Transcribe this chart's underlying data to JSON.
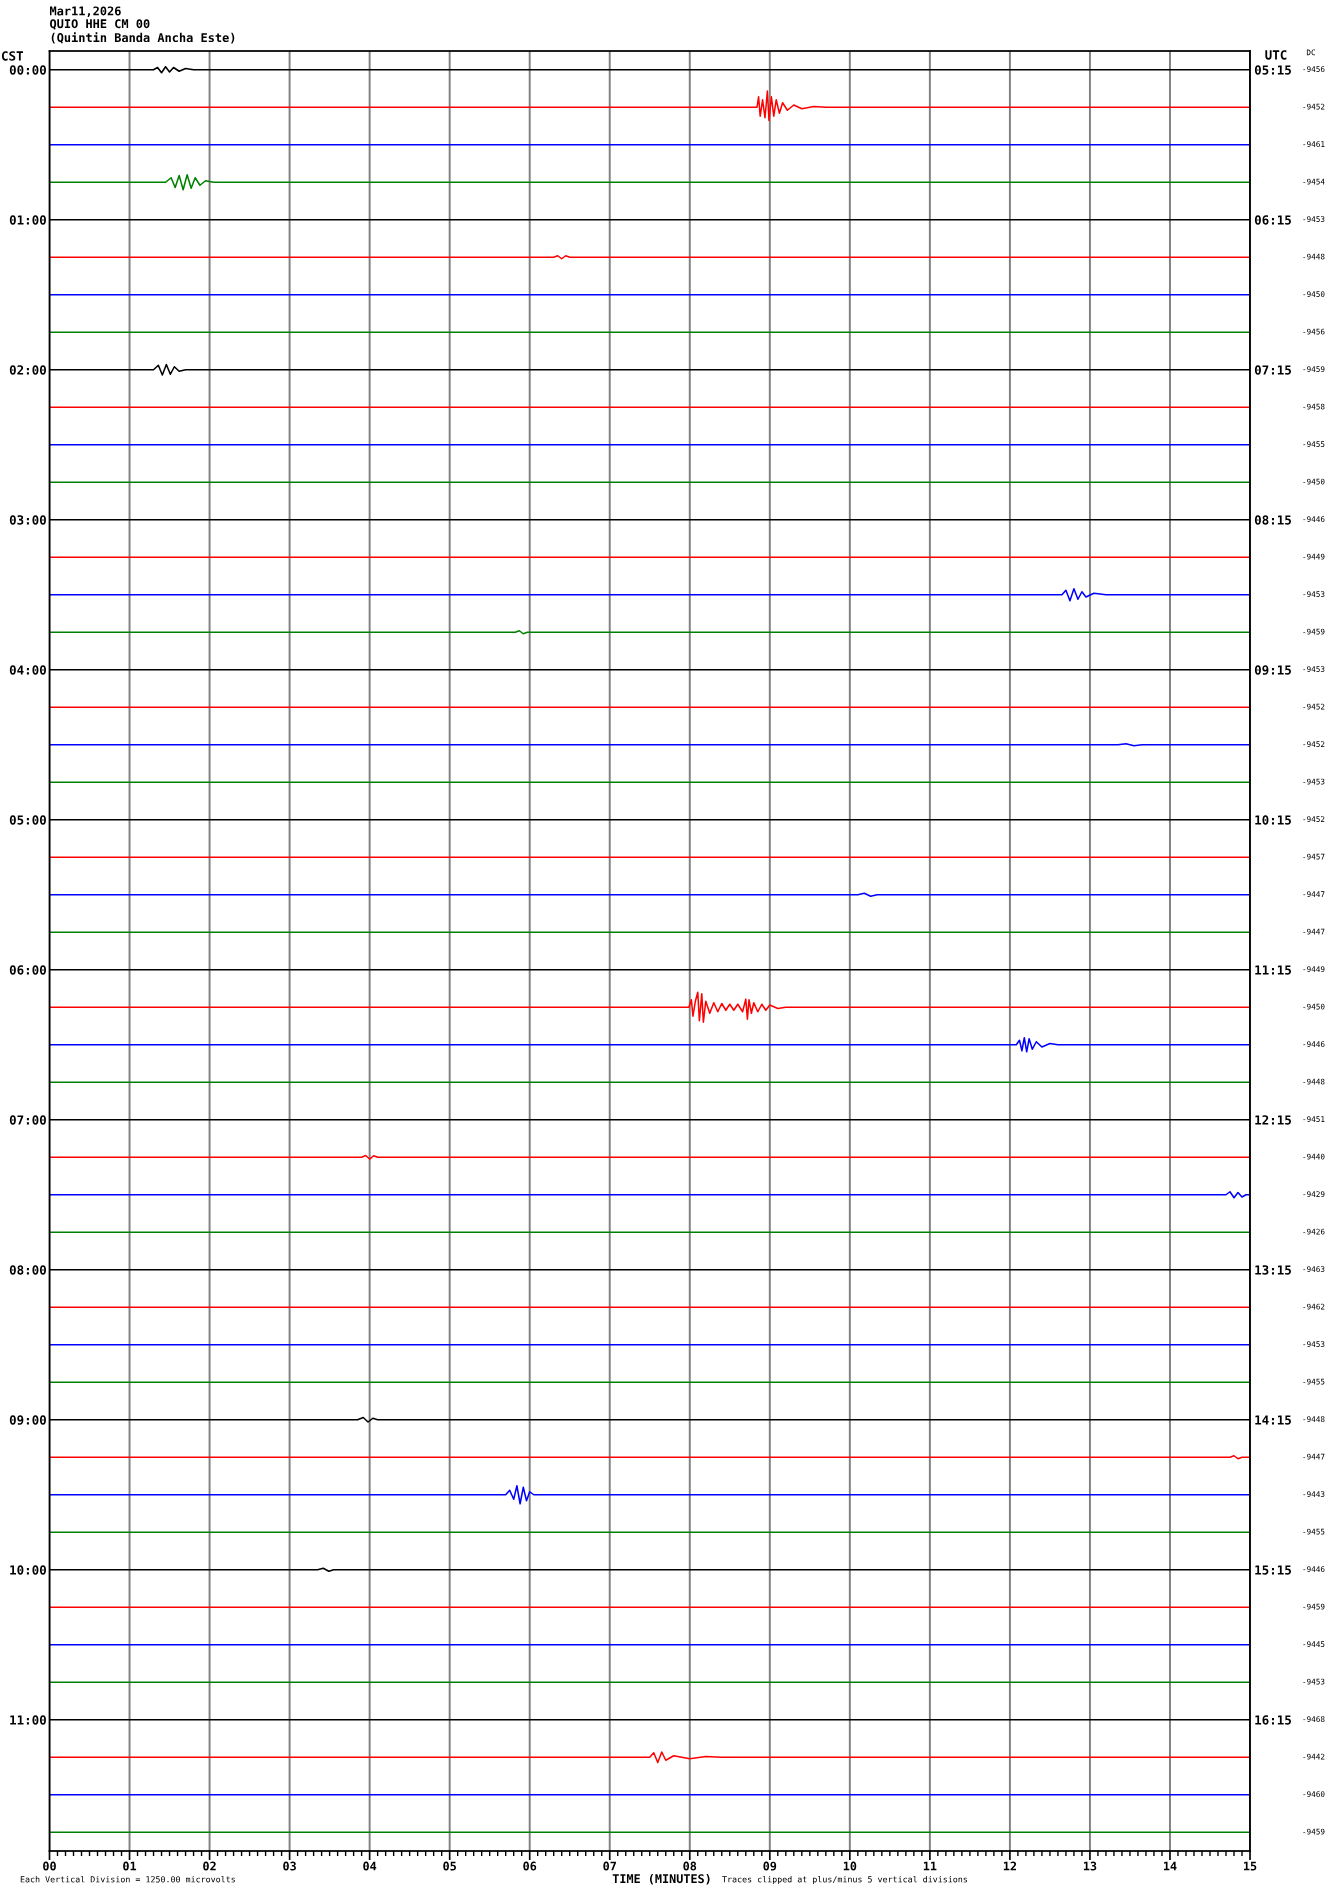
{
  "chart_data": {
    "type": "line",
    "title": "Mar11,2026",
    "subtitle": "QUIO HHE CM 00\n(Quintin Banda Ancha Este)",
    "xlabel": "TIME (MINUTES)",
    "ylabel": "CST",
    "y2label": "UTC",
    "annotations": [
      "Each Vertical Division = 1250.00 microvolts",
      "Traces clipped at plus/minus 5 vertical divisions",
      "DC",
      "-9456",
      "-9452",
      "-9461",
      "-9454",
      "-9453",
      "-9448",
      "-9450",
      "-9456",
      "-9459",
      "-9458",
      "-9455",
      "-9450",
      "-9446",
      "-9449",
      "-9453",
      "-9459",
      "-9453",
      "-9452",
      "-9452",
      "-9453",
      "-9452",
      "-9457",
      "-9447",
      "-9447",
      "-9449",
      "-9450",
      "-9446",
      "-9448",
      "-9451",
      "-9440",
      "-9429",
      "-9426",
      "-9463",
      "-9462",
      "-9453",
      "-9455",
      "-9448",
      "-9447",
      "-9443",
      "-9455",
      "-9446",
      "-9459",
      "-9445",
      "-9453",
      "-9468",
      "-9442",
      "-9460",
      "-9459"
    ],
    "grid": "x",
    "line_style": "solid",
    "xlim": [
      0,
      15
    ],
    "xticks": [
      {
        "value": 0,
        "label": "00"
      },
      {
        "value": 0.1,
        "label": null
      },
      {
        "value": 0.2,
        "label": null
      },
      {
        "value": 0.3,
        "label": null
      },
      {
        "value": 0.4,
        "label": null
      },
      {
        "value": 0.5,
        "label": null
      },
      {
        "value": 0.6,
        "label": null
      },
      {
        "value": 0.7,
        "label": null
      },
      {
        "value": 0.8,
        "label": null
      },
      {
        "value": 0.9,
        "label": null
      },
      {
        "value": 1,
        "label": "01"
      },
      {
        "value": 1.1,
        "label": null
      },
      {
        "value": 1.2,
        "label": null
      },
      {
        "value": 1.3,
        "label": null
      },
      {
        "value": 1.4,
        "label": null
      },
      {
        "value": 1.5,
        "label": null
      },
      {
        "value": 1.6,
        "label": null
      },
      {
        "value": 1.7,
        "label": null
      },
      {
        "value": 1.8,
        "label": null
      },
      {
        "value": 1.9,
        "label": null
      },
      {
        "value": 2,
        "label": "02"
      },
      {
        "value": 2.1,
        "label": null
      },
      {
        "value": 2.2,
        "label": null
      },
      {
        "value": 2.3,
        "label": null
      },
      {
        "value": 2.4,
        "label": null
      },
      {
        "value": 2.5,
        "label": null
      },
      {
        "value": 2.6,
        "label": null
      },
      {
        "value": 2.7,
        "label": null
      },
      {
        "value": 2.8,
        "label": null
      },
      {
        "value": 2.9,
        "label": null
      },
      {
        "value": 3,
        "label": "03"
      },
      {
        "value": 3.1,
        "label": null
      },
      {
        "value": 3.2,
        "label": null
      },
      {
        "value": 3.3,
        "label": null
      },
      {
        "value": 3.4,
        "label": null
      },
      {
        "value": 3.5,
        "label": null
      },
      {
        "value": 3.6,
        "label": null
      },
      {
        "value": 3.7,
        "label": null
      },
      {
        "value": 3.8,
        "label": null
      },
      {
        "value": 3.9,
        "label": null
      },
      {
        "value": 4,
        "label": "04"
      },
      {
        "value": 4.1,
        "label": null
      },
      {
        "value": 4.2,
        "label": null
      },
      {
        "value": 4.3,
        "label": null
      },
      {
        "value": 4.4,
        "label": null
      },
      {
        "value": 4.5,
        "label": null
      },
      {
        "value": 4.6,
        "label": null
      },
      {
        "value": 4.7,
        "label": null
      },
      {
        "value": 4.8,
        "label": null
      },
      {
        "value": 4.9,
        "label": null
      },
      {
        "value": 5,
        "label": "05"
      },
      {
        "value": 5.1,
        "label": null
      },
      {
        "value": 5.2,
        "label": null
      },
      {
        "value": 5.3,
        "label": null
      },
      {
        "value": 5.4,
        "label": null
      },
      {
        "value": 5.5,
        "label": null
      },
      {
        "value": 5.6,
        "label": null
      },
      {
        "value": 5.7,
        "label": null
      },
      {
        "value": 5.8,
        "label": null
      },
      {
        "value": 5.9,
        "label": null
      },
      {
        "value": 6,
        "label": "06"
      },
      {
        "value": 6.1,
        "label": null
      },
      {
        "value": 6.2,
        "label": null
      },
      {
        "value": 6.3,
        "label": null
      },
      {
        "value": 6.4,
        "label": null
      },
      {
        "value": 6.5,
        "label": null
      },
      {
        "value": 6.6,
        "label": null
      },
      {
        "value": 6.7,
        "label": null
      },
      {
        "value": 6.8,
        "label": null
      },
      {
        "value": 6.9,
        "label": null
      },
      {
        "value": 7,
        "label": "07"
      },
      {
        "value": 7.1,
        "label": null
      },
      {
        "value": 7.2,
        "label": null
      },
      {
        "value": 7.3,
        "label": null
      },
      {
        "value": 7.4,
        "label": null
      },
      {
        "value": 7.5,
        "label": null
      },
      {
        "value": 7.6,
        "label": null
      },
      {
        "value": 7.7,
        "label": null
      },
      {
        "value": 7.8,
        "label": null
      },
      {
        "value": 7.9,
        "label": null
      },
      {
        "value": 8,
        "label": "08"
      },
      {
        "value": 8.1,
        "label": null
      },
      {
        "value": 8.2,
        "label": null
      },
      {
        "value": 8.3,
        "label": null
      },
      {
        "value": 8.4,
        "label": null
      },
      {
        "value": 8.5,
        "label": null
      },
      {
        "value": 8.6,
        "label": null
      },
      {
        "value": 8.7,
        "label": null
      },
      {
        "value": 8.8,
        "label": null
      },
      {
        "value": 8.9,
        "label": null
      },
      {
        "value": 9,
        "label": "09"
      },
      {
        "value": 9.1,
        "label": null
      },
      {
        "value": 9.2,
        "label": null
      },
      {
        "value": 9.3,
        "label": null
      },
      {
        "value": 9.4,
        "label": null
      },
      {
        "value": 9.5,
        "label": null
      },
      {
        "value": 9.6,
        "label": null
      },
      {
        "value": 9.7,
        "label": null
      },
      {
        "value": 9.8,
        "label": null
      },
      {
        "value": 9.9,
        "label": null
      },
      {
        "value": 10,
        "label": "10"
      },
      {
        "value": 10.1,
        "label": null
      },
      {
        "value": 10.2,
        "label": null
      },
      {
        "value": 10.3,
        "label": null
      },
      {
        "value": 10.4,
        "label": null
      },
      {
        "value": 10.5,
        "label": null
      },
      {
        "value": 10.6,
        "label": null
      },
      {
        "value": 10.7,
        "label": null
      },
      {
        "value": 10.8,
        "label": null
      },
      {
        "value": 10.9,
        "label": null
      },
      {
        "value": 11,
        "label": "11"
      },
      {
        "value": 11.1,
        "label": null
      },
      {
        "value": 11.2,
        "label": null
      },
      {
        "value": 11.3,
        "label": null
      },
      {
        "value": 11.4,
        "label": null
      },
      {
        "value": 11.5,
        "label": null
      },
      {
        "value": 11.6,
        "label": null
      },
      {
        "value": 11.7,
        "label": null
      },
      {
        "value": 11.8,
        "label": null
      },
      {
        "value": 11.9,
        "label": null
      },
      {
        "value": 12,
        "label": "12"
      },
      {
        "value": 12.1,
        "label": null
      },
      {
        "value": 12.2,
        "label": null
      },
      {
        "value": 12.3,
        "label": null
      },
      {
        "value": 12.4,
        "label": null
      },
      {
        "value": 12.5,
        "label": null
      },
      {
        "value": 12.6,
        "label": null
      },
      {
        "value": 12.7,
        "label": null
      },
      {
        "value": 12.8,
        "label": null
      },
      {
        "value": 12.9,
        "label": null
      },
      {
        "value": 13,
        "label": "13"
      },
      {
        "value": 13.1,
        "label": null
      },
      {
        "value": 13.2,
        "label": null
      },
      {
        "value": 13.3,
        "label": null
      },
      {
        "value": 13.4,
        "label": null
      },
      {
        "value": 13.5,
        "label": null
      },
      {
        "value": 13.6,
        "label": null
      },
      {
        "value": 13.7,
        "label": null
      },
      {
        "value": 13.8,
        "label": null
      },
      {
        "value": 13.9,
        "label": null
      },
      {
        "value": 14,
        "label": "14"
      },
      {
        "value": 14.1,
        "label": null
      },
      {
        "value": 14.2,
        "label": null
      },
      {
        "value": 14.3,
        "label": null
      },
      {
        "value": 14.4,
        "label": null
      },
      {
        "value": 14.5,
        "label": null
      },
      {
        "value": 14.6,
        "label": null
      },
      {
        "value": 14.7,
        "label": null
      },
      {
        "value": 14.8,
        "label": null
      },
      {
        "value": 14.9,
        "label": null
      },
      {
        "value": 15,
        "label": "15"
      }
    ],
    "ylim": [
      11.875,
      -0.125
    ],
    "yticks": [
      {
        "value": 0,
        "label": "00:00"
      },
      {
        "value": 1,
        "label": "01:00"
      },
      {
        "value": 2,
        "label": "02:00"
      },
      {
        "value": 3,
        "label": "03:00"
      },
      {
        "value": 4,
        "label": "04:00"
      },
      {
        "value": 5,
        "label": "05:00"
      },
      {
        "value": 6,
        "label": "06:00"
      },
      {
        "value": 7,
        "label": "07:00"
      },
      {
        "value": 8,
        "label": "08:00"
      },
      {
        "value": 9,
        "label": "09:00"
      },
      {
        "value": 10,
        "label": "10:00"
      },
      {
        "value": 11,
        "label": "11:00"
      }
    ],
    "y2lim": [
      17.125,
      5.125
    ],
    "y2ticks": [
      {
        "value": 5.25,
        "label": "05:15"
      },
      {
        "value": 6.25,
        "label": "06:15"
      },
      {
        "value": 7.25,
        "label": "07:15"
      },
      {
        "value": 8.25,
        "label": "08:15"
      },
      {
        "value": 9.25,
        "label": "09:15"
      },
      {
        "value": 10.25,
        "label": "10:15"
      },
      {
        "value": 11.25,
        "label": "11:15"
      },
      {
        "value": 12.25,
        "label": "12:15"
      },
      {
        "value": 13.25,
        "label": "13:15"
      },
      {
        "value": 14.25,
        "label": "14:15"
      },
      {
        "value": 15.25,
        "label": "15:15"
      },
      {
        "value": 16.25,
        "label": "16:15"
      }
    ],
    "series": [
      {
        "color": "#000000",
        "x": [
          0,
          1.3,
          1.35,
          1.4,
          1.45,
          1.5,
          1.55,
          1.62,
          1.7,
          1.8,
          15
        ],
        "values": [
          0,
          0,
          -0.015,
          0.02,
          -0.02,
          0.015,
          -0.015,
          0.01,
          -0.008,
          0,
          0
        ]
      },
      {
        "color": "#ff0000",
        "x": [
          0,
          8.84,
          8.86,
          8.88,
          8.91,
          8.94,
          8.97,
          8.99,
          9.02,
          9.05,
          9.08,
          9.12,
          9.16,
          9.22,
          9.3,
          9.4,
          9.55,
          9.7,
          15
        ],
        "values": [
          0.25,
          0.25,
          0.18,
          0.31,
          0.2,
          0.32,
          0.142,
          0.338,
          0.18,
          0.31,
          0.2,
          0.29,
          0.22,
          0.27,
          0.235,
          0.26,
          0.245,
          0.25,
          0.25
        ]
      },
      {
        "color": "#0000ff",
        "x": [
          0,
          15
        ],
        "values": [
          0.5,
          0.5
        ]
      },
      {
        "color": "#008000",
        "x": [
          0,
          1.45,
          1.52,
          1.57,
          1.62,
          1.67,
          1.72,
          1.77,
          1.82,
          1.88,
          1.95,
          2.05,
          15
        ],
        "values": [
          0.75,
          0.75,
          0.72,
          0.785,
          0.705,
          0.8,
          0.7,
          0.79,
          0.72,
          0.77,
          0.74,
          0.75,
          0.75
        ]
      },
      {
        "color": "#000000",
        "x": [
          0,
          15
        ],
        "values": [
          1,
          1
        ]
      },
      {
        "color": "#ff0000",
        "x": [
          0,
          6.3,
          6.35,
          6.4,
          6.45,
          6.5,
          15
        ],
        "values": [
          1.25,
          1.25,
          1.24,
          1.26,
          1.24,
          1.25,
          1.25
        ]
      },
      {
        "color": "#0000ff",
        "x": [
          0,
          15
        ],
        "values": [
          1.5,
          1.5
        ]
      },
      {
        "color": "#008000",
        "x": [
          0,
          15
        ],
        "values": [
          1.75,
          1.75
        ]
      },
      {
        "color": "#000000",
        "x": [
          0,
          1.3,
          1.36,
          1.41,
          1.46,
          1.51,
          1.56,
          1.62,
          1.7,
          15
        ],
        "values": [
          2,
          2,
          1.97,
          2.035,
          1.965,
          2.03,
          1.98,
          2.01,
          2,
          2
        ]
      },
      {
        "color": "#ff0000",
        "x": [
          0,
          15
        ],
        "values": [
          2.25,
          2.25
        ]
      },
      {
        "color": "#0000ff",
        "x": [
          0,
          15
        ],
        "values": [
          2.5,
          2.5
        ]
      },
      {
        "color": "#008000",
        "x": [
          0,
          15
        ],
        "values": [
          2.75,
          2.75
        ]
      },
      {
        "color": "#000000",
        "x": [
          0,
          15
        ],
        "values": [
          3,
          3
        ]
      },
      {
        "color": "#ff0000",
        "x": [
          0,
          15
        ],
        "values": [
          3.25,
          3.25
        ]
      },
      {
        "color": "#0000ff",
        "x": [
          0,
          12.65,
          12.7,
          12.75,
          12.8,
          12.85,
          12.9,
          12.95,
          13.05,
          13.2,
          15
        ],
        "values": [
          3.5,
          3.5,
          3.47,
          3.54,
          3.46,
          3.53,
          3.48,
          3.515,
          3.49,
          3.5,
          3.5
        ]
      },
      {
        "color": "#008000",
        "x": [
          0,
          5.82,
          5.87,
          5.92,
          5.97,
          15
        ],
        "values": [
          3.75,
          3.75,
          3.74,
          3.76,
          3.75,
          3.75
        ]
      },
      {
        "color": "#000000",
        "x": [
          0,
          15
        ],
        "values": [
          4,
          4
        ]
      },
      {
        "color": "#ff0000",
        "x": [
          0,
          15
        ],
        "values": [
          4.25,
          4.25
        ]
      },
      {
        "color": "#0000ff",
        "x": [
          0,
          13.35,
          13.45,
          13.55,
          13.65,
          15
        ],
        "values": [
          4.5,
          4.5,
          4.493,
          4.507,
          4.5,
          4.5
        ]
      },
      {
        "color": "#008000",
        "x": [
          0,
          15
        ],
        "values": [
          4.75,
          4.75
        ]
      },
      {
        "color": "#000000",
        "x": [
          0,
          15
        ],
        "values": [
          5,
          5
        ]
      },
      {
        "color": "#ff0000",
        "x": [
          0,
          15
        ],
        "values": [
          5.25,
          5.25
        ]
      },
      {
        "color": "#0000ff",
        "x": [
          0,
          10.1,
          10.18,
          10.26,
          10.34,
          15
        ],
        "values": [
          5.5,
          5.5,
          5.49,
          5.51,
          5.5,
          5.5
        ]
      },
      {
        "color": "#008000",
        "x": [
          0,
          15
        ],
        "values": [
          5.75,
          5.75
        ]
      },
      {
        "color": "#000000",
        "x": [
          0,
          15
        ],
        "values": [
          6,
          6
        ]
      },
      {
        "color": "#ff0000",
        "x": [
          0,
          7.99,
          8.02,
          8.04,
          8.07,
          8.1,
          8.12,
          8.15,
          8.17,
          8.2,
          8.25,
          8.3,
          8.35,
          8.4,
          8.45,
          8.5,
          8.55,
          8.6,
          8.66,
          8.7,
          8.72,
          8.74,
          8.77,
          8.8,
          8.85,
          8.9,
          8.95,
          9.0,
          9.1,
          9.2,
          15
        ],
        "values": [
          6.25,
          6.25,
          6.2,
          6.31,
          6.21,
          6.15,
          6.34,
          6.16,
          6.35,
          6.21,
          6.29,
          6.22,
          6.28,
          6.225,
          6.27,
          6.23,
          6.27,
          6.23,
          6.28,
          6.196,
          6.33,
          6.2,
          6.29,
          6.22,
          6.28,
          6.23,
          6.27,
          6.235,
          6.258,
          6.25,
          6.25
        ]
      },
      {
        "color": "#0000ff",
        "x": [
          0,
          12.08,
          12.12,
          12.15,
          12.18,
          12.21,
          12.24,
          12.28,
          12.33,
          12.4,
          12.5,
          12.6,
          15
        ],
        "values": [
          6.5,
          6.5,
          6.47,
          6.54,
          6.453,
          6.547,
          6.46,
          6.53,
          6.48,
          6.515,
          6.492,
          6.5,
          6.5
        ]
      },
      {
        "color": "#008000",
        "x": [
          0,
          15
        ],
        "values": [
          6.75,
          6.75
        ]
      },
      {
        "color": "#000000",
        "x": [
          0,
          15
        ],
        "values": [
          7,
          7
        ]
      },
      {
        "color": "#ff0000",
        "x": [
          0,
          3.9,
          3.95,
          4.0,
          4.05,
          4.1,
          15
        ],
        "values": [
          7.25,
          7.25,
          7.238,
          7.262,
          7.24,
          7.25,
          7.25
        ]
      },
      {
        "color": "#0000ff",
        "x": [
          0,
          14.7,
          14.75,
          14.8,
          14.85,
          14.9,
          14.95,
          15
        ],
        "values": [
          7.5,
          7.5,
          7.48,
          7.52,
          7.485,
          7.515,
          7.5,
          7.5
        ]
      },
      {
        "color": "#008000",
        "x": [
          0,
          15
        ],
        "values": [
          7.75,
          7.75
        ]
      },
      {
        "color": "#000000",
        "x": [
          0,
          15
        ],
        "values": [
          8,
          8
        ]
      },
      {
        "color": "#ff0000",
        "x": [
          0,
          15
        ],
        "values": [
          8.25,
          8.25
        ]
      },
      {
        "color": "#0000ff",
        "x": [
          0,
          15
        ],
        "values": [
          8.5,
          8.5
        ]
      },
      {
        "color": "#008000",
        "x": [
          0,
          15
        ],
        "values": [
          8.75,
          8.75
        ]
      },
      {
        "color": "#000000",
        "x": [
          0,
          3.85,
          3.92,
          3.98,
          4.04,
          4.1,
          15
        ],
        "values": [
          9,
          9,
          8.985,
          9.015,
          8.99,
          9,
          9
        ]
      },
      {
        "color": "#ff0000",
        "x": [
          0,
          14.75,
          14.8,
          14.85,
          14.9,
          15
        ],
        "values": [
          9.25,
          9.25,
          9.24,
          9.26,
          9.25,
          9.25
        ]
      },
      {
        "color": "#0000ff",
        "x": [
          0,
          5.7,
          5.75,
          5.8,
          5.84,
          5.88,
          5.92,
          5.96,
          6.0,
          6.05,
          15
        ],
        "values": [
          9.5,
          9.5,
          9.47,
          9.53,
          9.44,
          9.56,
          9.45,
          9.54,
          9.48,
          9.5,
          9.5
        ]
      },
      {
        "color": "#008000",
        "x": [
          0,
          15
        ],
        "values": [
          9.75,
          9.75
        ]
      },
      {
        "color": "#000000",
        "x": [
          0,
          3.35,
          3.42,
          3.49,
          3.55,
          15
        ],
        "values": [
          10,
          10,
          9.99,
          10.01,
          10,
          10
        ]
      },
      {
        "color": "#ff0000",
        "x": [
          0,
          15
        ],
        "values": [
          10.25,
          10.25
        ]
      },
      {
        "color": "#0000ff",
        "x": [
          0,
          15
        ],
        "values": [
          10.5,
          10.5
        ]
      },
      {
        "color": "#008000",
        "x": [
          0,
          15
        ],
        "values": [
          10.75,
          10.75
        ]
      },
      {
        "color": "#000000",
        "x": [
          0,
          15
        ],
        "values": [
          11,
          11
        ]
      },
      {
        "color": "#ff0000",
        "x": [
          0,
          7.5,
          7.55,
          7.6,
          7.65,
          7.7,
          7.8,
          8.0,
          8.2,
          8.4,
          15
        ],
        "values": [
          11.25,
          11.25,
          11.22,
          11.285,
          11.215,
          11.27,
          11.24,
          11.26,
          11.245,
          11.25,
          11.25
        ]
      },
      {
        "color": "#0000ff",
        "x": [
          0,
          15
        ],
        "values": [
          11.5,
          11.5
        ]
      },
      {
        "color": "#008000",
        "x": [
          0,
          15
        ],
        "values": [
          11.75,
          11.75
        ]
      }
    ]
  }
}
